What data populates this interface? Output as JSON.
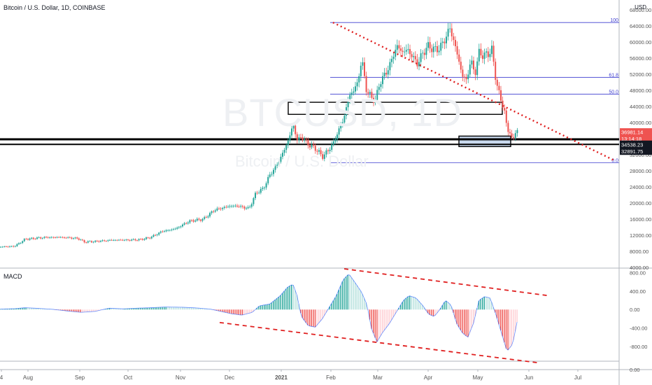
{
  "header": {
    "title": "Bitcoin / U.S. Dollar, 1D, COINBASE",
    "currency": "USD",
    "watermark_symbol": "BTCUSD, 1D",
    "watermark_name": "Bitcoin / U.S. Dollar"
  },
  "colors": {
    "up": "#26a69a",
    "down": "#ef5350",
    "fib": "#3f3fd0",
    "trend": "#e02020",
    "axis_text": "#555555"
  },
  "chart_data": [
    {
      "type": "candlestick",
      "title": "Bitcoin / U.S. Dollar, 1D, COINBASE",
      "y_axis_ticks": [
        4000,
        8000,
        12000,
        16000,
        20000,
        24000,
        28000,
        32000,
        36000,
        40000,
        44000,
        48000,
        52000,
        56000,
        60000,
        64000,
        68000
      ],
      "y_axis_tick_labels": [
        "4000.00",
        "8000.00",
        "12000.00",
        "16000.00",
        "20000.00",
        "24000.00",
        "28000.00",
        "32000.00",
        "36000.00",
        "40000.00",
        "44000.00",
        "48000.00",
        "52000.00",
        "56000.00",
        "60000.00",
        "64000.00",
        "68000.00"
      ],
      "x_axis_labels": [
        "4",
        "Aug",
        "Sep",
        "Oct",
        "Nov",
        "Dec",
        "2021",
        "Feb",
        "Mar",
        "Apr",
        "May",
        "Jun",
        "Jul"
      ],
      "ylim": [
        4000,
        69000
      ],
      "price_path": [
        [
          0,
          9100
        ],
        [
          20,
          9250
        ],
        [
          35,
          11000
        ],
        [
          60,
          11400
        ],
        [
          85,
          11500
        ],
        [
          110,
          11200
        ],
        [
          120,
          10300
        ],
        [
          140,
          10500
        ],
        [
          160,
          10800
        ],
        [
          185,
          10800
        ],
        [
          200,
          10900
        ],
        [
          215,
          11500
        ],
        [
          230,
          12900
        ],
        [
          250,
          13600
        ],
        [
          270,
          15500
        ],
        [
          290,
          16000
        ],
        [
          305,
          18200
        ],
        [
          315,
          18700
        ],
        [
          330,
          19300
        ],
        [
          340,
          19200
        ],
        [
          355,
          18600
        ],
        [
          365,
          22500
        ],
        [
          375,
          23500
        ],
        [
          385,
          27000
        ],
        [
          395,
          29500
        ],
        [
          405,
          33000
        ],
        [
          412,
          36000
        ],
        [
          418,
          39500
        ],
        [
          424,
          35500
        ],
        [
          430,
          36500
        ],
        [
          440,
          34500
        ],
        [
          450,
          33500
        ],
        [
          460,
          31500
        ],
        [
          468,
          33000
        ],
        [
          476,
          35000
        ],
        [
          484,
          38500
        ],
        [
          490,
          40500
        ],
        [
          496,
          45500
        ],
        [
          502,
          47500
        ],
        [
          510,
          49500
        ],
        [
          516,
          56000
        ],
        [
          522,
          48500
        ],
        [
          530,
          46000
        ],
        [
          536,
          45500
        ],
        [
          542,
          50000
        ],
        [
          550,
          52000
        ],
        [
          558,
          55000
        ],
        [
          566,
          59000
        ],
        [
          574,
          57500
        ],
        [
          582,
          58000
        ],
        [
          590,
          56000
        ],
        [
          596,
          54500
        ],
        [
          604,
          57500
        ],
        [
          612,
          59000
        ],
        [
          620,
          58000
        ],
        [
          628,
          58500
        ],
        [
          636,
          61000
        ],
        [
          642,
          63500
        ],
        [
          648,
          60000
        ],
        [
          654,
          56000
        ],
        [
          660,
          51500
        ],
        [
          666,
          50500
        ],
        [
          672,
          55500
        ],
        [
          678,
          52000
        ],
        [
          684,
          57500
        ],
        [
          690,
          56500
        ],
        [
          696,
          57000
        ],
        [
          702,
          58000
        ],
        [
          708,
          50500
        ],
        [
          714,
          46000
        ],
        [
          720,
          43000
        ],
        [
          724,
          38000
        ],
        [
          728,
          37500
        ],
        [
          732,
          35500
        ],
        [
          736,
          37500
        ],
        [
          740,
          38500
        ]
      ],
      "fib_levels": [
        {
          "label": "100",
          "price": 64800
        },
        {
          "label": "61.8",
          "price": 51200
        },
        {
          "label": "50.0",
          "price": 47000
        },
        {
          "label": "0.0",
          "price": 30000
        }
      ],
      "trendline": {
        "from": [
          476,
          64800
        ],
        "to": [
          880,
          30400
        ]
      },
      "rectangles": [
        {
          "name": "upper-box",
          "x": [
            412,
            718
          ],
          "price": [
            42000,
            45000
          ],
          "fill": "none"
        },
        {
          "name": "lower-box",
          "x": [
            656,
            730
          ],
          "price": [
            34000,
            36600
          ],
          "fill": "#c9d9ee"
        }
      ],
      "horizontal_lines": [
        {
          "price": 35800,
          "width": 3,
          "label": ""
        },
        {
          "price": 34538.23,
          "width": 2,
          "label": "34538.23"
        }
      ],
      "price_labels": [
        {
          "text": "36981.14",
          "price": 37600,
          "bg": "#ef5350"
        },
        {
          "text": "13:14:18",
          "price": 36000,
          "bg": "#ef5350"
        },
        {
          "text": "34538.23",
          "price": 34538.23,
          "bg": "#131722"
        },
        {
          "text": "32891.75",
          "price": 32891.75,
          "bg": "#131722"
        }
      ]
    },
    {
      "type": "histogram",
      "title": "MACD",
      "y_axis_ticks": [
        800,
        400,
        0,
        -400,
        -800
      ],
      "y_axis_tick_labels": [
        "800.00",
        "400.00",
        "0.00",
        "-400.00",
        "-800.00"
      ],
      "extra_tick": "0.00",
      "ylim": [
        -1100,
        850
      ],
      "hist_path": [
        [
          0,
          10
        ],
        [
          20,
          20
        ],
        [
          35,
          40
        ],
        [
          55,
          25
        ],
        [
          75,
          5
        ],
        [
          95,
          -30
        ],
        [
          115,
          -60
        ],
        [
          135,
          -40
        ],
        [
          155,
          30
        ],
        [
          175,
          15
        ],
        [
          195,
          30
        ],
        [
          215,
          40
        ],
        [
          235,
          55
        ],
        [
          260,
          50
        ],
        [
          280,
          35
        ],
        [
          300,
          10
        ],
        [
          315,
          -40
        ],
        [
          330,
          -90
        ],
        [
          345,
          -120
        ],
        [
          360,
          -60
        ],
        [
          370,
          80
        ],
        [
          385,
          120
        ],
        [
          400,
          300
        ],
        [
          410,
          480
        ],
        [
          418,
          550
        ],
        [
          424,
          300
        ],
        [
          430,
          -150
        ],
        [
          440,
          -350
        ],
        [
          450,
          -380
        ],
        [
          460,
          -200
        ],
        [
          470,
          50
        ],
        [
          480,
          300
        ],
        [
          490,
          650
        ],
        [
          498,
          770
        ],
        [
          506,
          600
        ],
        [
          516,
          380
        ],
        [
          524,
          100
        ],
        [
          530,
          -400
        ],
        [
          538,
          -700
        ],
        [
          546,
          -500
        ],
        [
          556,
          -300
        ],
        [
          566,
          -50
        ],
        [
          576,
          200
        ],
        [
          584,
          300
        ],
        [
          594,
          250
        ],
        [
          604,
          80
        ],
        [
          612,
          -100
        ],
        [
          620,
          -150
        ],
        [
          628,
          0
        ],
        [
          636,
          200
        ],
        [
          644,
          100
        ],
        [
          652,
          -300
        ],
        [
          660,
          -500
        ],
        [
          668,
          -600
        ],
        [
          676,
          -300
        ],
        [
          684,
          200
        ],
        [
          692,
          280
        ],
        [
          700,
          250
        ],
        [
          708,
          -100
        ],
        [
          716,
          -500
        ],
        [
          724,
          -900
        ],
        [
          732,
          -750
        ],
        [
          740,
          -150
        ]
      ],
      "channel_lines": [
        {
          "from": [
            492,
            880
          ],
          "to": [
            784,
            300
          ]
        },
        {
          "from": [
            314,
            -280
          ],
          "to": [
            770,
            -1150
          ]
        }
      ]
    }
  ]
}
